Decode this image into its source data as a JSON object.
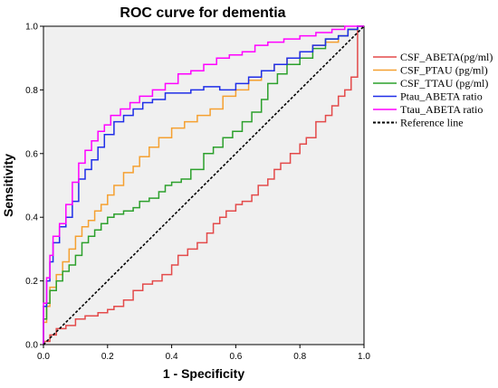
{
  "chart_data": {
    "type": "line",
    "title": "ROC curve for dementia",
    "xlabel": "1 - Specificity",
    "ylabel": "Sensitivity",
    "xlim": [
      0,
      1
    ],
    "ylim": [
      0,
      1
    ],
    "xticks": [
      "0.0",
      "0.2",
      "0.4",
      "0.6",
      "0.8",
      "1.0"
    ],
    "yticks": [
      "0.0",
      "0.2",
      "0.4",
      "0.6",
      "0.8",
      "1.0"
    ],
    "grid": false,
    "plot_background": "#f0f0f0",
    "legend_position": "right",
    "series": [
      {
        "name": "CSF_ABETA(pg/ml)",
        "color": "#e34a4a",
        "x": [
          0,
          0.02,
          0.04,
          0.07,
          0.1,
          0.13,
          0.17,
          0.2,
          0.22,
          0.25,
          0.28,
          0.31,
          0.34,
          0.37,
          0.4,
          0.42,
          0.45,
          0.48,
          0.51,
          0.53,
          0.55,
          0.57,
          0.6,
          0.62,
          0.65,
          0.67,
          0.7,
          0.72,
          0.74,
          0.77,
          0.8,
          0.82,
          0.85,
          0.88,
          0.9,
          0.92,
          0.94,
          0.96,
          0.98,
          1.0
        ],
        "y": [
          0,
          0.01,
          0.03,
          0.05,
          0.06,
          0.08,
          0.09,
          0.1,
          0.11,
          0.12,
          0.14,
          0.17,
          0.19,
          0.2,
          0.22,
          0.25,
          0.28,
          0.3,
          0.32,
          0.35,
          0.38,
          0.4,
          0.42,
          0.44,
          0.45,
          0.47,
          0.5,
          0.52,
          0.55,
          0.57,
          0.6,
          0.63,
          0.65,
          0.7,
          0.72,
          0.75,
          0.78,
          0.8,
          0.84,
          1.0
        ]
      },
      {
        "name": "CSF_PTAU (pg/ml)",
        "color": "#f5a030",
        "x": [
          0,
          0.01,
          0.02,
          0.04,
          0.06,
          0.08,
          0.1,
          0.12,
          0.14,
          0.16,
          0.18,
          0.2,
          0.22,
          0.25,
          0.28,
          0.3,
          0.33,
          0.36,
          0.4,
          0.44,
          0.48,
          0.52,
          0.56,
          0.6,
          0.64,
          0.68,
          0.72,
          0.76,
          0.8,
          0.84,
          0.88,
          0.92,
          0.95,
          0.98,
          1.0
        ],
        "y": [
          0,
          0.07,
          0.12,
          0.18,
          0.22,
          0.26,
          0.3,
          0.34,
          0.37,
          0.39,
          0.42,
          0.44,
          0.47,
          0.5,
          0.54,
          0.56,
          0.59,
          0.62,
          0.65,
          0.68,
          0.7,
          0.72,
          0.74,
          0.78,
          0.8,
          0.83,
          0.86,
          0.88,
          0.9,
          0.92,
          0.94,
          0.95,
          0.97,
          0.99,
          1.0
        ]
      },
      {
        "name": "CSF_TTAU (pg/ml)",
        "color": "#2ca02c",
        "x": [
          0,
          0.01,
          0.02,
          0.04,
          0.06,
          0.08,
          0.1,
          0.12,
          0.14,
          0.16,
          0.18,
          0.2,
          0.22,
          0.25,
          0.28,
          0.3,
          0.33,
          0.36,
          0.38,
          0.4,
          0.43,
          0.46,
          0.5,
          0.53,
          0.56,
          0.59,
          0.62,
          0.65,
          0.68,
          0.7,
          0.73,
          0.76,
          0.8,
          0.84,
          0.88,
          0.92,
          0.95,
          0.98,
          1.0
        ],
        "y": [
          0,
          0.08,
          0.13,
          0.17,
          0.2,
          0.23,
          0.25,
          0.28,
          0.32,
          0.34,
          0.36,
          0.38,
          0.4,
          0.41,
          0.42,
          0.43,
          0.45,
          0.46,
          0.48,
          0.5,
          0.51,
          0.52,
          0.55,
          0.6,
          0.62,
          0.65,
          0.67,
          0.7,
          0.73,
          0.77,
          0.82,
          0.85,
          0.88,
          0.9,
          0.93,
          0.96,
          0.97,
          0.99,
          1.0
        ]
      },
      {
        "name": "Ptau_ABETA ratio",
        "color": "#1f2ee8",
        "x": [
          0,
          0.01,
          0.02,
          0.03,
          0.05,
          0.07,
          0.09,
          0.11,
          0.13,
          0.15,
          0.17,
          0.19,
          0.22,
          0.25,
          0.28,
          0.31,
          0.34,
          0.38,
          0.42,
          0.46,
          0.5,
          0.55,
          0.6,
          0.64,
          0.68,
          0.72,
          0.76,
          0.8,
          0.84,
          0.88,
          0.92,
          0.95,
          0.98,
          1.0
        ],
        "y": [
          0,
          0.12,
          0.2,
          0.26,
          0.32,
          0.37,
          0.4,
          0.45,
          0.52,
          0.55,
          0.58,
          0.62,
          0.66,
          0.7,
          0.72,
          0.74,
          0.76,
          0.77,
          0.79,
          0.79,
          0.8,
          0.81,
          0.8,
          0.82,
          0.84,
          0.86,
          0.88,
          0.9,
          0.92,
          0.94,
          0.96,
          0.97,
          0.99,
          1.0
        ]
      },
      {
        "name": "Ttau_ABETA ratio",
        "color": "#ff00ff",
        "x": [
          0,
          0.01,
          0.02,
          0.03,
          0.05,
          0.07,
          0.09,
          0.11,
          0.13,
          0.15,
          0.17,
          0.19,
          0.21,
          0.24,
          0.27,
          0.3,
          0.34,
          0.38,
          0.42,
          0.46,
          0.5,
          0.54,
          0.58,
          0.62,
          0.66,
          0.7,
          0.75,
          0.8,
          0.85,
          0.9,
          0.94,
          0.97,
          1.0
        ],
        "y": [
          0,
          0.13,
          0.21,
          0.28,
          0.34,
          0.38,
          0.44,
          0.51,
          0.57,
          0.61,
          0.64,
          0.67,
          0.69,
          0.72,
          0.74,
          0.76,
          0.78,
          0.8,
          0.82,
          0.85,
          0.86,
          0.88,
          0.9,
          0.91,
          0.92,
          0.94,
          0.95,
          0.96,
          0.97,
          0.98,
          0.99,
          1.0,
          1.0
        ]
      },
      {
        "name": "Reference line",
        "color": "#000000",
        "dashed": true,
        "x": [
          0,
          1
        ],
        "y": [
          0,
          1
        ]
      }
    ]
  }
}
